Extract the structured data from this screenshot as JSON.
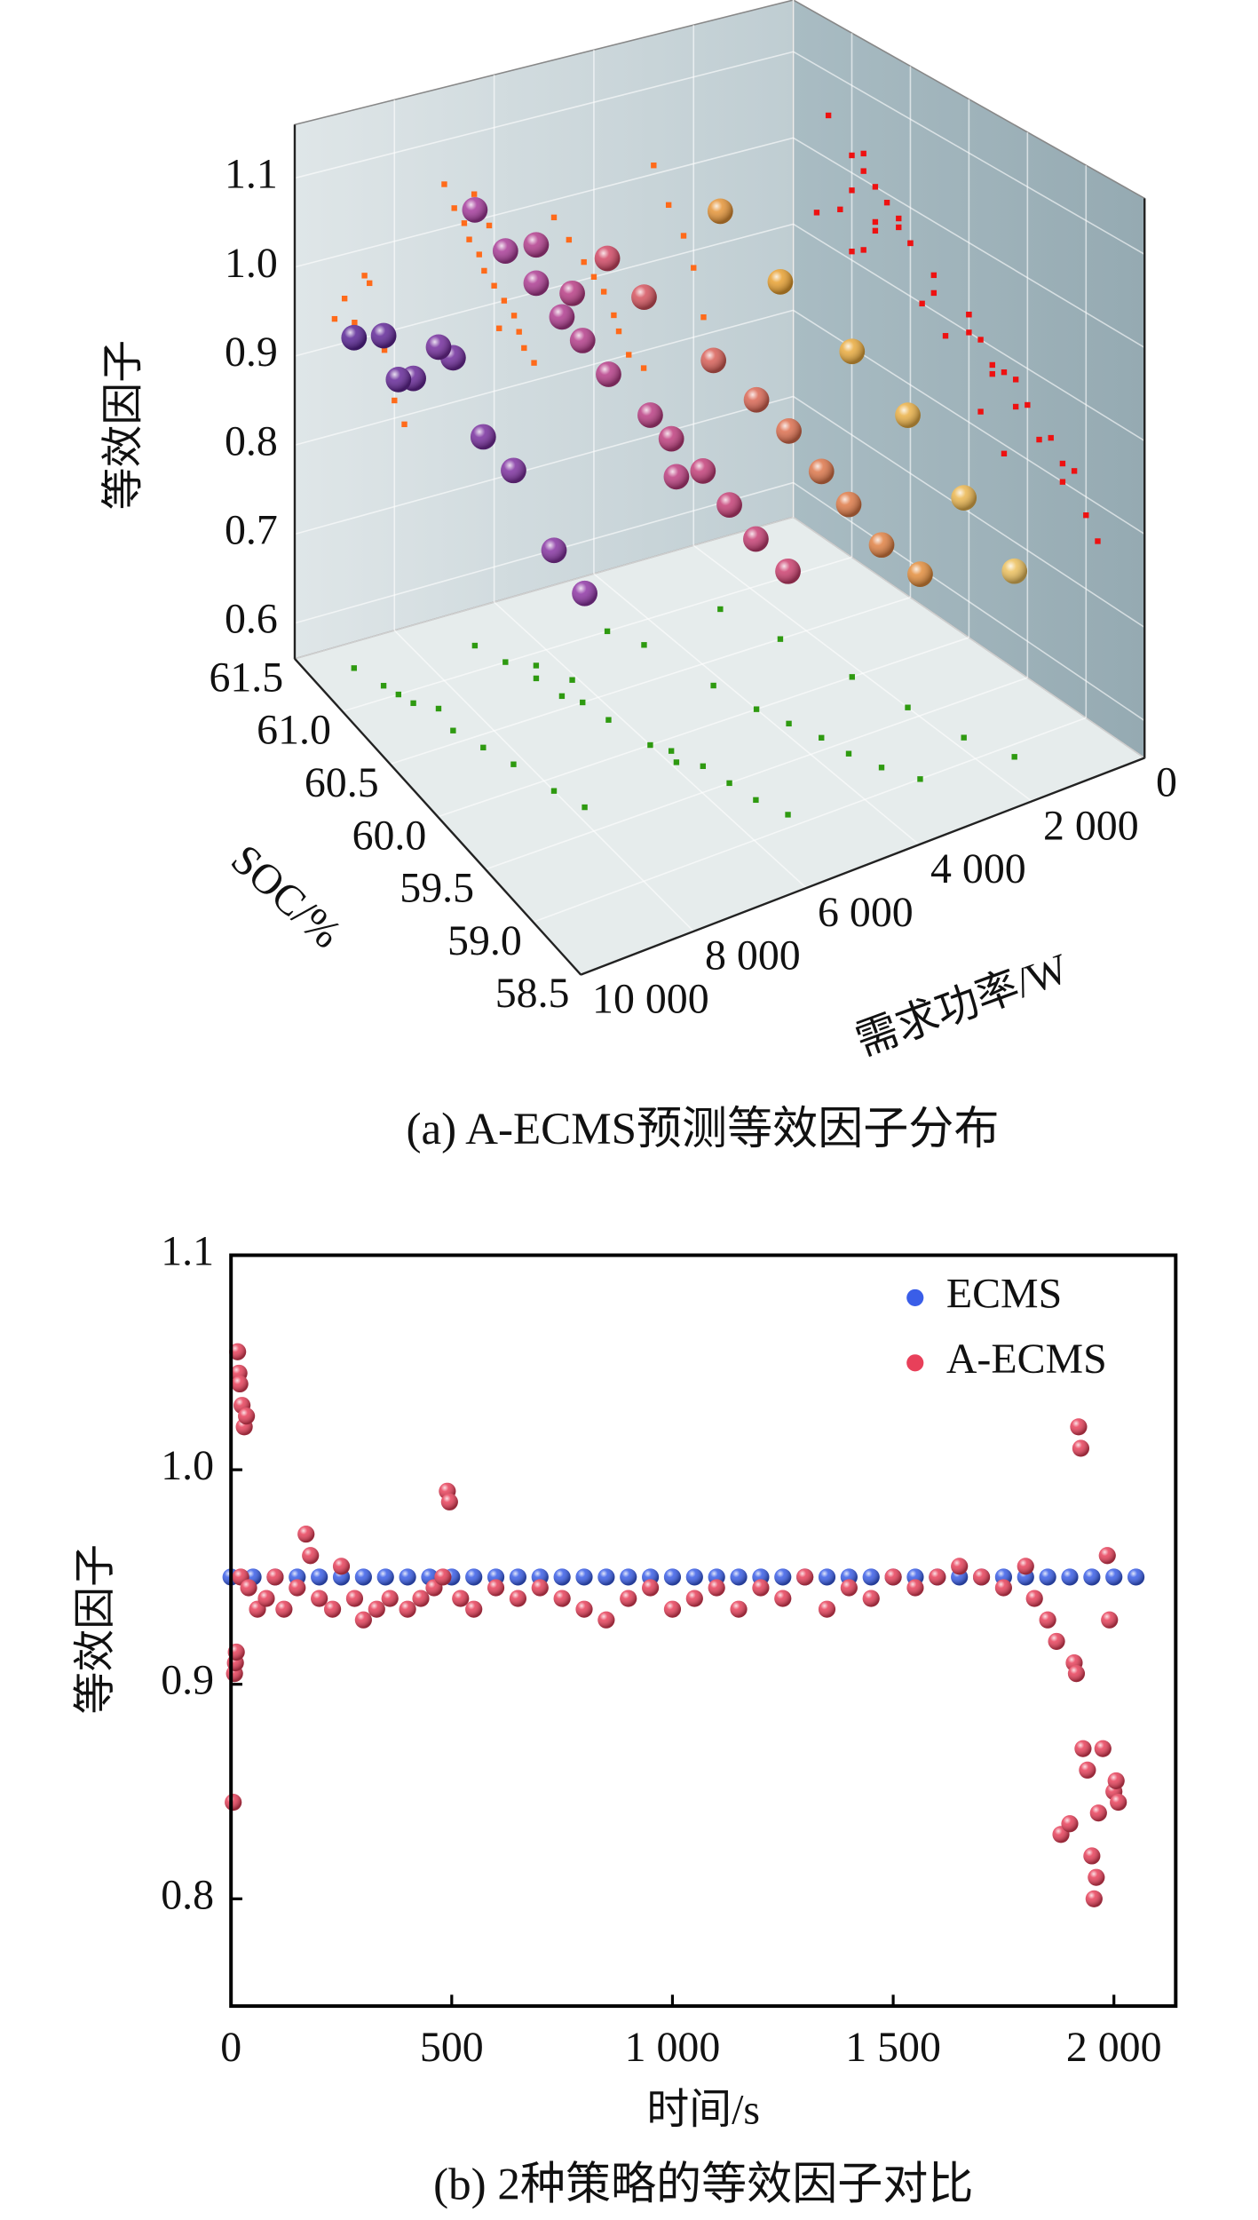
{
  "chart_data": [
    {
      "type": "scatter3d",
      "caption": "(a) A-ECMS预测等效因子分布",
      "xlabel": "需求功率/W",
      "ylabel": "SOC/%",
      "zlabel": "等效因子",
      "xlim": [
        0,
        10000
      ],
      "ylim": [
        58.5,
        61.5
      ],
      "zlim": [
        0.56,
        1.16
      ],
      "xticks": [
        0,
        {
          "value": 2000,
          "label": "2 000"
        },
        {
          "value": 4000,
          "label": "4 000"
        },
        {
          "value": 6000,
          "label": "6 000"
        },
        {
          "value": 8000,
          "label": "8 000"
        },
        {
          "value": 10000,
          "label": "10 000"
        }
      ],
      "yticks": [
        {
          "value": 61.5,
          "label": "61.5"
        },
        {
          "value": 61,
          "label": "61.0"
        },
        {
          "value": 60.5,
          "label": "60.5"
        },
        {
          "value": 60,
          "label": "60.0"
        },
        {
          "value": 59.5,
          "label": "59.5"
        },
        {
          "value": 59,
          "label": "59.0"
        },
        {
          "value": 58.5,
          "label": "58.5"
        }
      ],
      "zticks": [
        0.6,
        0.7,
        0.8,
        0.9,
        {
          "value": 1,
          "label": "1.0"
        },
        1.1
      ],
      "grid": true,
      "colormap": [
        "#f2f0a0",
        "#e8a030",
        "#d0406a",
        "#9a3aa8",
        "#3b1a8c"
      ],
      "projection_colors": {
        "back": "#ff6a1a",
        "side": "#ee1111",
        "floor": "#2e9a10"
      },
      "x": [
        9200,
        9000,
        8800,
        8600,
        8400,
        8200,
        8000,
        7800,
        8500,
        8900,
        7000,
        6800,
        6600,
        6500,
        6300,
        6200,
        6000,
        5800,
        5600,
        5500,
        5400,
        5200,
        6400,
        6100,
        5900,
        4800,
        4500,
        4200,
        4000,
        3800,
        3600,
        3500,
        3300,
        3000,
        2800,
        2500,
        2200,
        2000,
        1800,
        1500
      ],
      "y": [
        61.3,
        61.1,
        60.9,
        60.6,
        60.4,
        60.2,
        59.9,
        59.7,
        60.8,
        61.0,
        61.2,
        61.0,
        60.8,
        60.6,
        60.5,
        60.3,
        60.0,
        59.9,
        59.7,
        59.5,
        59.3,
        59.1,
        60.9,
        60.7,
        59.8,
        61.0,
        60.8,
        60.3,
        60.0,
        59.8,
        59.6,
        59.4,
        59.2,
        59.0,
        60.9,
        60.5,
        60.0,
        59.6,
        59.2,
        58.9
      ],
      "z": [
        0.93,
        0.95,
        0.92,
        0.97,
        0.9,
        0.88,
        0.82,
        0.79,
        0.96,
        0.91,
        1.05,
        1.02,
        1.0,
        0.98,
        0.96,
        0.94,
        0.92,
        0.9,
        0.88,
        0.86,
        0.84,
        0.82,
        1.03,
        0.99,
        0.87,
        0.98,
        0.95,
        0.92,
        0.9,
        0.88,
        0.85,
        0.83,
        0.8,
        0.78,
        1.01,
        0.96,
        0.92,
        0.88,
        0.82,
        0.76
      ]
    },
    {
      "type": "scatter",
      "caption": "(b) 2种策略的等效因子对比",
      "xlabel": "时间/s",
      "ylabel": "等效因子",
      "xlim": [
        0,
        2140
      ],
      "ylim": [
        0.75,
        1.1
      ],
      "xticks": [
        0,
        500,
        {
          "value": 1000,
          "label": "1 000"
        },
        {
          "value": 1500,
          "label": "1 500"
        },
        {
          "value": 2000,
          "label": "2 000"
        }
      ],
      "yticks": [
        0.8,
        0.9,
        {
          "value": 1,
          "label": "1.0"
        },
        1.1
      ],
      "legend": "upper right",
      "series": [
        {
          "name": "ECMS",
          "color": "#3a5ee8",
          "x": [
            0,
            50,
            100,
            150,
            200,
            250,
            300,
            350,
            400,
            450,
            500,
            550,
            600,
            650,
            700,
            750,
            800,
            850,
            900,
            950,
            1000,
            1050,
            1100,
            1150,
            1200,
            1250,
            1300,
            1350,
            1400,
            1450,
            1500,
            1550,
            1600,
            1650,
            1700,
            1750,
            1800,
            1850,
            1900,
            1950,
            2000,
            2050
          ],
          "values": [
            0.95,
            0.95,
            0.95,
            0.95,
            0.95,
            0.95,
            0.95,
            0.95,
            0.95,
            0.95,
            0.95,
            0.95,
            0.95,
            0.95,
            0.95,
            0.95,
            0.95,
            0.95,
            0.95,
            0.95,
            0.95,
            0.95,
            0.95,
            0.95,
            0.95,
            0.95,
            0.95,
            0.95,
            0.95,
            0.95,
            0.95,
            0.95,
            0.95,
            0.95,
            0.95,
            0.95,
            0.95,
            0.95,
            0.95,
            0.95,
            0.95,
            0.95
          ]
        },
        {
          "name": "A-ECMS",
          "color": "#e8405a",
          "x": [
            5,
            8,
            10,
            12,
            15,
            18,
            20,
            25,
            30,
            35,
            22,
            40,
            60,
            80,
            100,
            120,
            150,
            170,
            180,
            200,
            230,
            250,
            280,
            300,
            330,
            360,
            400,
            430,
            460,
            480,
            490,
            495,
            520,
            550,
            600,
            650,
            700,
            750,
            800,
            850,
            900,
            950,
            1000,
            1050,
            1100,
            1150,
            1200,
            1250,
            1300,
            1350,
            1400,
            1450,
            1500,
            1550,
            1600,
            1650,
            1700,
            1750,
            1800,
            1820,
            1850,
            1870,
            1880,
            1900,
            1910,
            1915,
            1920,
            1925,
            1930,
            1940,
            1950,
            1955,
            1960,
            1965,
            1975,
            1985,
            1990,
            2000,
            2005,
            2010
          ],
          "values": [
            0.845,
            0.905,
            0.91,
            0.915,
            1.055,
            1.045,
            1.04,
            1.03,
            1.02,
            1.025,
            0.95,
            0.945,
            0.935,
            0.94,
            0.95,
            0.935,
            0.945,
            0.97,
            0.96,
            0.94,
            0.935,
            0.955,
            0.94,
            0.93,
            0.935,
            0.94,
            0.935,
            0.94,
            0.945,
            0.95,
            0.99,
            0.985,
            0.94,
            0.935,
            0.945,
            0.94,
            0.945,
            0.94,
            0.935,
            0.93,
            0.94,
            0.945,
            0.935,
            0.94,
            0.945,
            0.935,
            0.945,
            0.94,
            0.95,
            0.935,
            0.945,
            0.94,
            0.95,
            0.945,
            0.95,
            0.955,
            0.95,
            0.945,
            0.955,
            0.94,
            0.93,
            0.92,
            0.83,
            0.835,
            0.91,
            0.905,
            1.02,
            1.01,
            0.87,
            0.86,
            0.82,
            0.8,
            0.81,
            0.84,
            0.87,
            0.96,
            0.93,
            0.85,
            0.855,
            0.845
          ]
        }
      ]
    }
  ]
}
